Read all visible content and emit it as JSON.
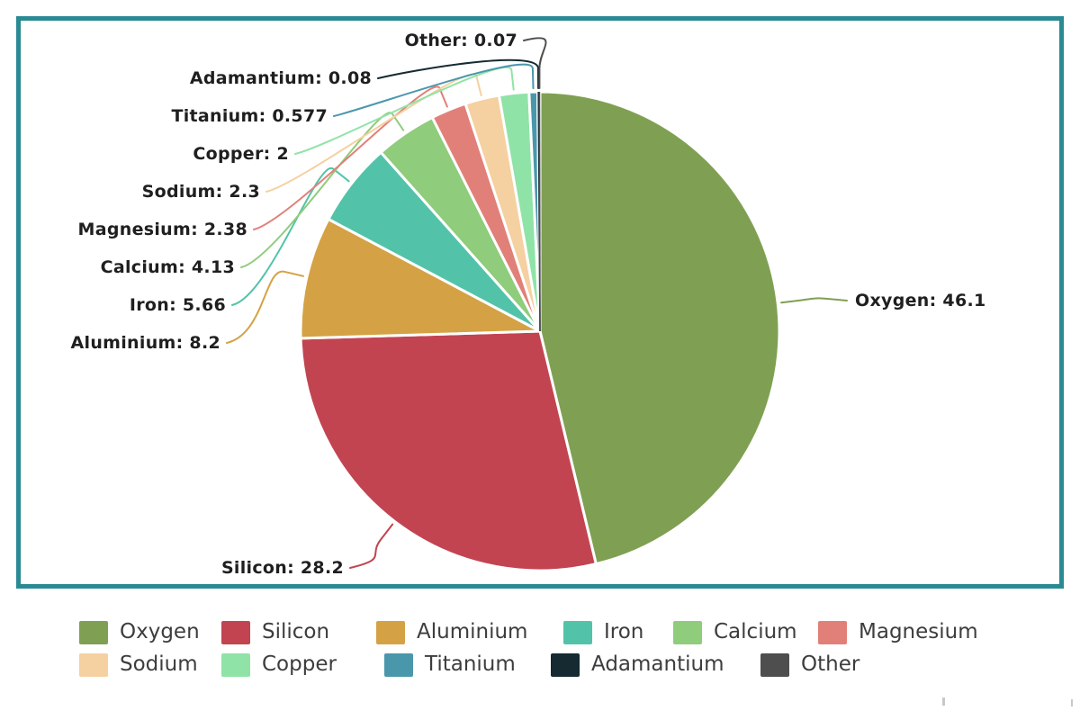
{
  "chart_data": {
    "type": "pie",
    "title": "",
    "direction": "clockwise",
    "start_angle_deg": 0,
    "legend_position": "bottom",
    "label_format": "{name}: {value}",
    "background_color": "#ffffff",
    "frame_border_color": "#2a8a94",
    "separator_color": "#ffffff",
    "series": [
      {
        "label": "Oxygen",
        "value": 46.1,
        "color": "#7fa053"
      },
      {
        "label": "Silicon",
        "value": 28.2,
        "color": "#c24451"
      },
      {
        "label": "Aluminium",
        "value": 8.2,
        "color": "#d4a245"
      },
      {
        "label": "Iron",
        "value": 5.66,
        "color": "#52c3a8"
      },
      {
        "label": "Calcium",
        "value": 4.13,
        "color": "#8fcc7c"
      },
      {
        "label": "Magnesium",
        "value": 2.38,
        "color": "#e18079"
      },
      {
        "label": "Sodium",
        "value": 2.3,
        "color": "#f5d0a1"
      },
      {
        "label": "Copper",
        "value": 2,
        "color": "#90e3a7"
      },
      {
        "label": "Titanium",
        "value": 0.577,
        "color": "#4a97ac"
      },
      {
        "label": "Adamantium",
        "value": 0.08,
        "color": "#152a31"
      },
      {
        "label": "Other",
        "value": 0.07,
        "color": "#4e4e4e"
      }
    ],
    "callout_labels": [
      "Oxygen: 46.1",
      "Silicon: 28.2",
      "Aluminium: 8.2",
      "Iron: 5.66",
      "Calcium: 4.13",
      "Magnesium: 2.38",
      "Sodium: 2.3",
      "Copper: 2",
      "Titanium: 0.577",
      "Adamantium: 0.08",
      "Other: 0.07"
    ],
    "legend_rows": [
      [
        "Oxygen",
        "Silicon",
        "Aluminium",
        "Iron",
        "Calcium",
        "Magnesium"
      ],
      [
        "Sodium",
        "Copper",
        "Titanium",
        "Adamantium",
        "Other"
      ]
    ]
  }
}
